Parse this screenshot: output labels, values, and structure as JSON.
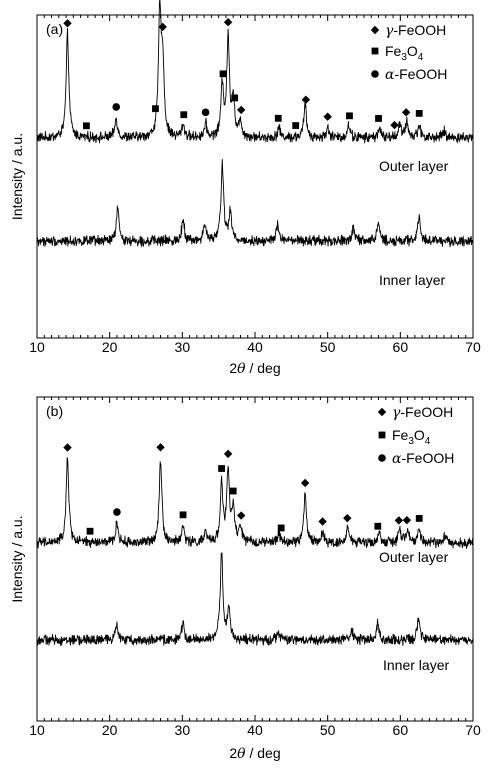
{
  "chart_data": [
    {
      "type": "line",
      "panel_label": "(a)",
      "xlabel_prefix": "2",
      "xlabel_theta": "θ",
      "xlabel_suffix": " / deg",
      "ylabel": "Intensity / a.u.",
      "xlim": [
        10,
        70
      ],
      "x_ticks": [
        10,
        20,
        30,
        40,
        50,
        60,
        70
      ],
      "grid": false,
      "legend_position": "top-right",
      "legend": [
        {
          "marker": "diamond",
          "prefix": "γ",
          "text": "-FeOOH"
        },
        {
          "marker": "square",
          "base": "Fe",
          "sub1": "3",
          "mid": "O",
          "sub2": "4"
        },
        {
          "marker": "circle",
          "prefix": "α",
          "text": "-FeOOH"
        }
      ],
      "series": [
        {
          "name": "Outer layer",
          "baseline": 0.62,
          "peaks": [
            [
              14.2,
              0.32
            ],
            [
              20.9,
              0.06
            ],
            [
              26.9,
              0.38
            ],
            [
              27.3,
              0.22
            ],
            [
              30.1,
              0.04
            ],
            [
              33.2,
              0.04
            ],
            [
              35.5,
              0.16
            ],
            [
              36.3,
              0.3
            ],
            [
              37.0,
              0.12
            ],
            [
              38.0,
              0.05
            ],
            [
              43.3,
              0.03
            ],
            [
              46.9,
              0.1
            ],
            [
              50.0,
              0.03
            ],
            [
              52.9,
              0.04
            ],
            [
              57.1,
              0.03
            ],
            [
              59.9,
              0.04
            ],
            [
              60.9,
              0.05
            ],
            [
              62.6,
              0.04
            ],
            [
              66.0,
              0.02
            ]
          ],
          "markers": [
            {
              "type": "diamond",
              "x": 14.2
            },
            {
              "type": "square",
              "x": 16.8
            },
            {
              "type": "circle",
              "x": 20.9
            },
            {
              "type": "square",
              "x": 26.3
            },
            {
              "type": "diamond",
              "x": 27.3
            },
            {
              "type": "square",
              "x": 30.2
            },
            {
              "type": "circle",
              "x": 33.2
            },
            {
              "type": "square",
              "x": 35.6
            },
            {
              "type": "diamond",
              "x": 36.3
            },
            {
              "type": "square",
              "x": 37.2
            },
            {
              "type": "diamond",
              "x": 38.1
            },
            {
              "type": "square",
              "x": 43.2
            },
            {
              "type": "square",
              "x": 45.6
            },
            {
              "type": "diamond",
              "x": 47.0
            },
            {
              "type": "diamond",
              "x": 50.0
            },
            {
              "type": "square",
              "x": 53.0
            },
            {
              "type": "square",
              "x": 57.0
            },
            {
              "type": "diamond",
              "x": 59.2
            },
            {
              "type": "diamond",
              "x": 60.8
            },
            {
              "type": "square",
              "x": 62.6
            }
          ]
        },
        {
          "name": "Inner layer",
          "baseline": 0.3,
          "peaks": [
            [
              21.1,
              0.1
            ],
            [
              30.1,
              0.07
            ],
            [
              33.1,
              0.05
            ],
            [
              35.5,
              0.24
            ],
            [
              36.6,
              0.09
            ],
            [
              43.1,
              0.05
            ],
            [
              53.5,
              0.04
            ],
            [
              57.0,
              0.06
            ],
            [
              62.6,
              0.08
            ]
          ],
          "markers": []
        }
      ]
    },
    {
      "type": "line",
      "panel_label": "(b)",
      "xlabel_prefix": "2",
      "xlabel_theta": "θ",
      "xlabel_suffix": " / deg",
      "ylabel": "Intensity / a.u.",
      "xlim": [
        10,
        70
      ],
      "x_ticks": [
        10,
        20,
        30,
        40,
        50,
        60,
        70
      ],
      "grid": false,
      "legend_position": "top-right",
      "legend": [
        {
          "marker": "diamond",
          "prefix": "γ",
          "text": "-FeOOH"
        },
        {
          "marker": "square",
          "base": "Fe",
          "sub1": "3",
          "mid": "O",
          "sub2": "4"
        },
        {
          "marker": "circle",
          "prefix": "α",
          "text": "-FeOOH"
        }
      ],
      "series": [
        {
          "name": "Outer layer",
          "baseline": 0.55,
          "peaks": [
            [
              14.2,
              0.26
            ],
            [
              21.0,
              0.06
            ],
            [
              27.0,
              0.26
            ],
            [
              30.1,
              0.05
            ],
            [
              33.2,
              0.03
            ],
            [
              35.4,
              0.18
            ],
            [
              36.3,
              0.22
            ],
            [
              37.0,
              0.1
            ],
            [
              38.0,
              0.05
            ],
            [
              43.3,
              0.03
            ],
            [
              46.9,
              0.15
            ],
            [
              49.3,
              0.03
            ],
            [
              52.8,
              0.05
            ],
            [
              57.1,
              0.03
            ],
            [
              59.9,
              0.04
            ],
            [
              61.0,
              0.04
            ],
            [
              62.6,
              0.04
            ],
            [
              66.0,
              0.02
            ]
          ],
          "markers": [
            {
              "type": "diamond",
              "x": 14.2
            },
            {
              "type": "square",
              "x": 17.3
            },
            {
              "type": "circle",
              "x": 21.0
            },
            {
              "type": "diamond",
              "x": 27.0
            },
            {
              "type": "square",
              "x": 30.1
            },
            {
              "type": "square",
              "x": 35.4
            },
            {
              "type": "diamond",
              "x": 36.3
            },
            {
              "type": "square",
              "x": 37.0
            },
            {
              "type": "diamond",
              "x": 38.1
            },
            {
              "type": "square",
              "x": 43.6
            },
            {
              "type": "diamond",
              "x": 46.9
            },
            {
              "type": "diamond",
              "x": 49.3
            },
            {
              "type": "diamond",
              "x": 52.7
            },
            {
              "type": "square",
              "x": 56.9
            },
            {
              "type": "diamond",
              "x": 59.8
            },
            {
              "type": "diamond",
              "x": 60.9
            },
            {
              "type": "square",
              "x": 62.6
            }
          ]
        },
        {
          "name": "Inner layer",
          "baseline": 0.25,
          "peaks": [
            [
              20.9,
              0.05
            ],
            [
              30.1,
              0.05
            ],
            [
              35.4,
              0.27
            ],
            [
              36.4,
              0.09
            ],
            [
              43.2,
              0.03
            ],
            [
              53.3,
              0.03
            ],
            [
              56.9,
              0.05
            ],
            [
              62.5,
              0.06
            ]
          ],
          "markers": []
        }
      ]
    }
  ]
}
